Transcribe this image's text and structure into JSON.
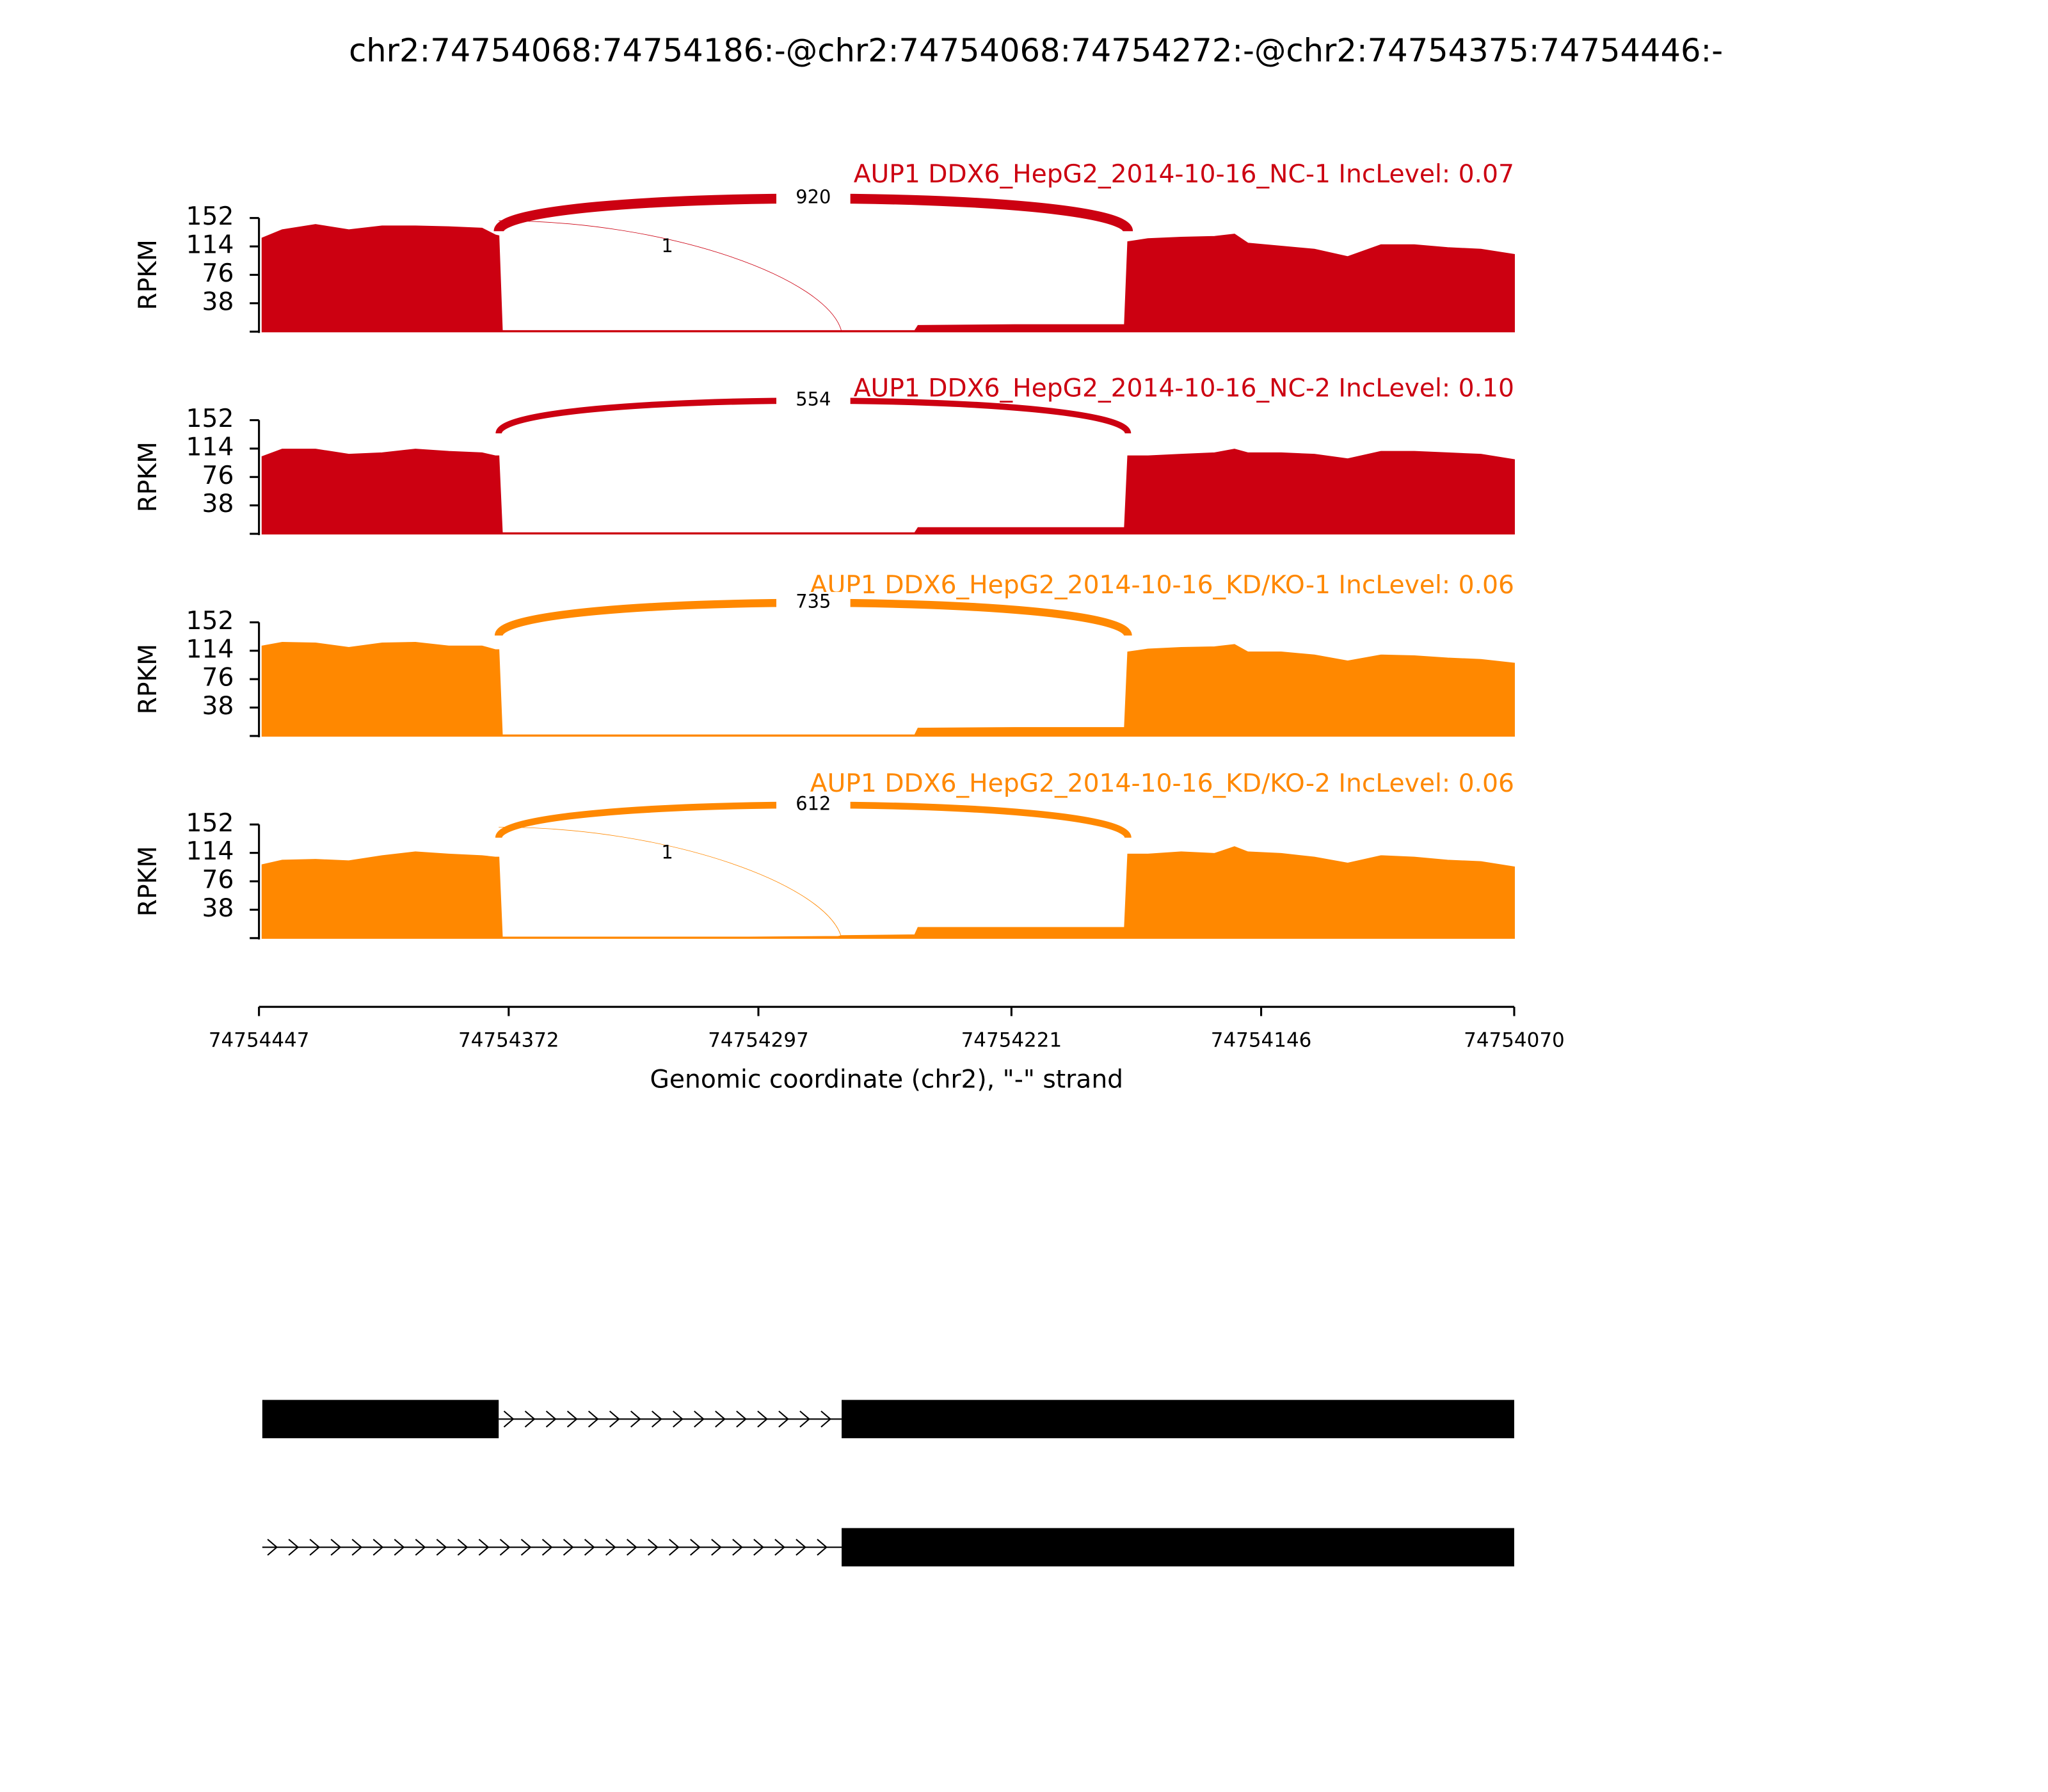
{
  "chart_data": {
    "type": "sashimi",
    "title": "chr2:74754068:74754186:-@chr2:74754068:74754272:-@chr2:74754375:74754446:-",
    "x_label": "Genomic coordinate (chr2), \"-\" strand",
    "y_label": "RPKM",
    "xlim": [
      74754447,
      74754070
    ],
    "xticks": [
      74754447,
      74754372,
      74754297,
      74754221,
      74754146,
      74754070
    ],
    "ylim": [
      0,
      152
    ],
    "yticks": [
      38,
      76,
      114,
      152
    ],
    "x": [
      74754446,
      74754440,
      74754430,
      74754420,
      74754410,
      74754400,
      74754390,
      74754380,
      74754376,
      74754375,
      74754374,
      74754350,
      74754320,
      74754300,
      74754273,
      74754272,
      74754250,
      74754249,
      74754220,
      74754200,
      74754187,
      74754186,
      74754180,
      74754170,
      74754160,
      74754154,
      74754150,
      74754140,
      74754130,
      74754120,
      74754110,
      74754100,
      74754090,
      74754080,
      74754070
    ],
    "tracks": [
      {
        "name": "AUP1 DDX6_HepG2_2014-10-16_NC-1 IncLevel: 0.07",
        "color": "#cc0011",
        "values": [
          125,
          136,
          143,
          136,
          141,
          141,
          140,
          138,
          129,
          128,
          1,
          1,
          1,
          1,
          1,
          1,
          1,
          8,
          9,
          9,
          9,
          120,
          124,
          126,
          127,
          130,
          118,
          114,
          110,
          100,
          116,
          116,
          112,
          110,
          103
        ],
        "junctions": [
          {
            "x": [
              74754375,
              74754186
            ],
            "count": 920
          },
          {
            "x": [
              74754375,
              74754272
            ],
            "count": 1
          }
        ]
      },
      {
        "name": "AUP1 DDX6_HepG2_2014-10-16_NC-2 IncLevel: 0.10",
        "color": "#cc0011",
        "values": [
          103,
          113,
          113,
          106,
          108,
          113,
          110,
          108,
          104,
          104,
          1,
          1,
          1,
          1,
          1,
          1,
          1,
          8,
          8,
          8,
          8,
          104,
          104,
          106,
          108,
          113,
          108,
          108,
          106,
          100,
          110,
          110,
          108,
          106,
          99
        ],
        "junctions": [
          {
            "x": [
              74754375,
              74754186
            ],
            "count": 554
          }
        ]
      },
      {
        "name": "AUP1 DDX6_HepG2_2014-10-16_KD/KO-1 IncLevel: 0.06",
        "color": "#ff8800",
        "values": [
          120,
          125,
          124,
          118,
          124,
          125,
          120,
          120,
          115,
          115,
          1,
          1,
          1,
          1,
          1,
          1,
          1,
          10,
          11,
          11,
          11,
          112,
          116,
          118,
          119,
          122,
          112,
          112,
          108,
          100,
          108,
          107,
          104,
          102,
          97
        ],
        "junctions": [
          {
            "x": [
              74754375,
              74754186
            ],
            "count": 735
          }
        ]
      },
      {
        "name": "AUP1 DDX6_HepG2_2014-10-16_KD/KO-2 IncLevel: 0.06",
        "color": "#ff8800",
        "values": [
          98,
          104,
          105,
          103,
          110,
          115,
          112,
          110,
          108,
          108,
          1,
          1,
          1,
          1,
          2,
          3,
          4,
          14,
          14,
          14,
          14,
          112,
          112,
          115,
          113,
          122,
          115,
          113,
          108,
          100,
          110,
          108,
          104,
          102,
          95
        ],
        "junctions": [
          {
            "x": [
              74754375,
              74754186
            ],
            "count": 612
          },
          {
            "x": [
              74754375,
              74754272
            ],
            "count": 1
          }
        ]
      }
    ],
    "gene_models": [
      {
        "exons": [
          [
            74754446,
            74754375
          ],
          [
            74754272,
            74754070
          ]
        ]
      },
      {
        "exons": [
          [
            74754272,
            74754070
          ]
        ],
        "start": 74754446
      }
    ]
  }
}
